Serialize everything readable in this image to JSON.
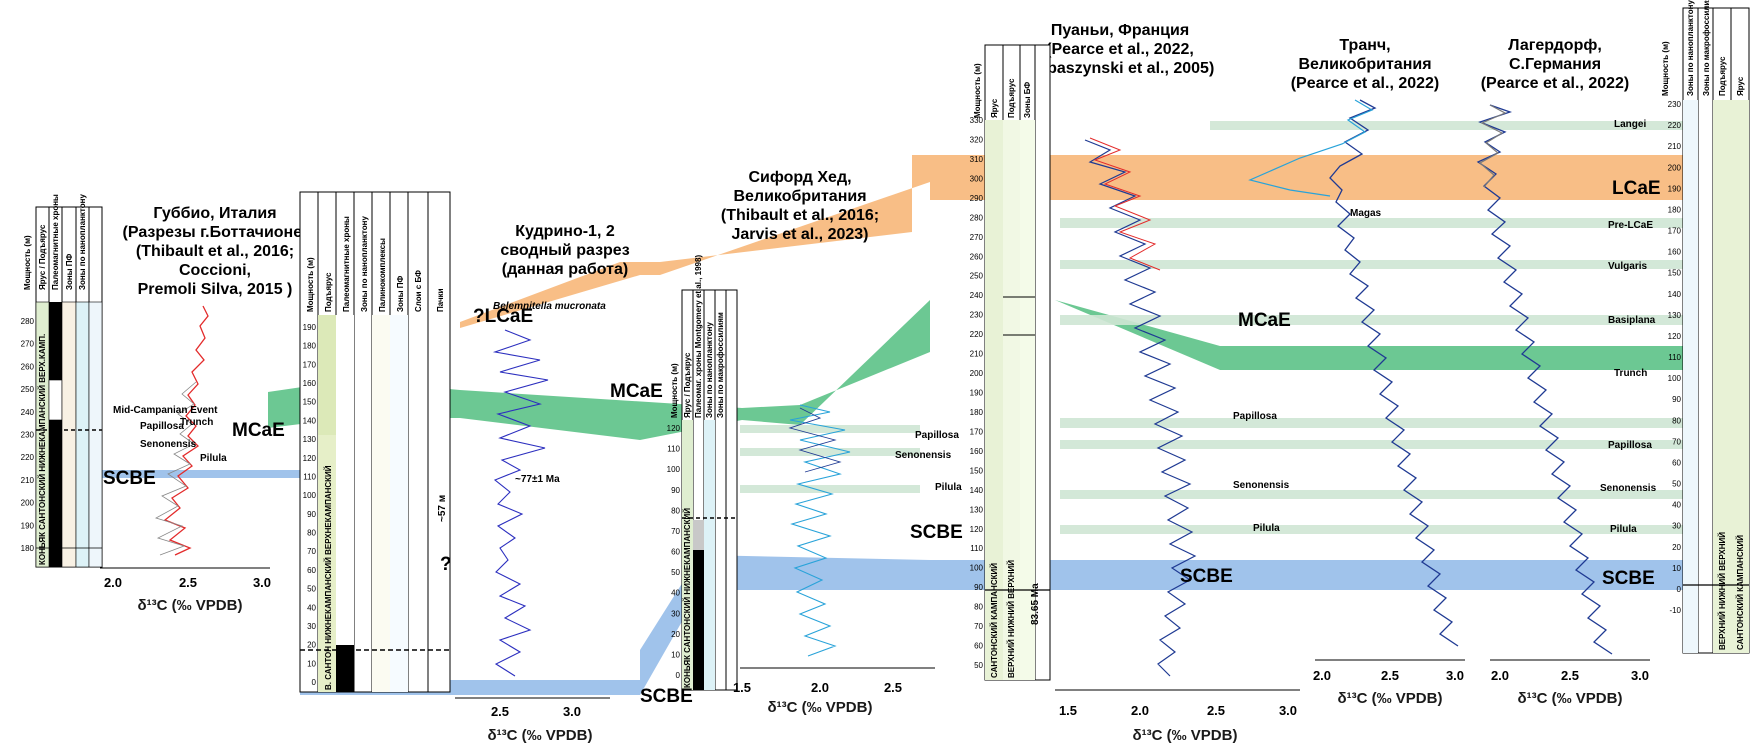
{
  "sections": {
    "gubbio": {
      "title": [
        "Губбио, Италия",
        "(Разрезы г.Боттачионе)",
        "(Thibault et al., 2016;",
        "Coccioni,",
        "Premoli Silva, 2015 )"
      ],
      "x_ticks": [
        "2.0",
        "2.5",
        "3.0"
      ],
      "depth_ticks": [
        "180",
        "190",
        "200",
        "210",
        "220",
        "230",
        "240",
        "250",
        "260",
        "270",
        "280"
      ]
    },
    "kudrino": {
      "title": [
        "Кудрино-1, 2",
        "сводный разрез",
        "(данная работа)"
      ],
      "x_ticks": [
        "2.5",
        "3.0"
      ],
      "depth_ticks": [
        "0",
        "10",
        "20",
        "30",
        "40",
        "50",
        "60",
        "70",
        "80",
        "90",
        "100",
        "110",
        "120",
        "130",
        "140",
        "150",
        "160",
        "170",
        "180",
        "190"
      ]
    },
    "seaford": {
      "title": [
        "Сифорд Хед,",
        "Великобритания",
        "(Thibault et al., 2016;",
        "Jarvis et al., 2023)"
      ],
      "x_ticks": [
        "1.5",
        "2.0",
        "2.5"
      ],
      "depth_ticks": [
        "0",
        "10",
        "20",
        "30",
        "40",
        "50",
        "60",
        "70",
        "80",
        "90",
        "100",
        "110",
        "120"
      ]
    },
    "poigny": {
      "title": [
        "Пуаньи, Франция",
        "(Pearce et al., 2022,",
        "Robaszynski et al., 2005)"
      ],
      "x_ticks": [
        "1.5",
        "2.0",
        "2.5",
        "3.0"
      ],
      "depth_ticks": [
        "50",
        "60",
        "70",
        "80",
        "90",
        "100",
        "110",
        "120",
        "130",
        "140",
        "150",
        "160",
        "170",
        "180",
        "190",
        "200",
        "210",
        "220",
        "230",
        "240",
        "250",
        "260",
        "270",
        "280",
        "290",
        "300",
        "310",
        "320",
        "330"
      ]
    },
    "trunch": {
      "title": [
        "Транч,",
        "Великобритания",
        "(Pearce et al., 2022)"
      ],
      "x_ticks": [
        "2.0",
        "2.5",
        "3.0"
      ]
    },
    "lagerdorf": {
      "title": [
        "Лагердорф,",
        "С.Германия",
        "(Pearce et al., 2022)"
      ],
      "x_ticks": [
        "2.0",
        "2.5",
        "3.0"
      ],
      "depth_ticks": [
        "-10",
        "0",
        "10",
        "20",
        "30",
        "40",
        "50",
        "60",
        "70",
        "80",
        "90",
        "100",
        "110",
        "120",
        "130",
        "140",
        "150",
        "160",
        "170",
        "180",
        "190",
        "200",
        "210",
        "220",
        "230"
      ]
    }
  },
  "axis_label": "δ¹³C (‰ VPDB)",
  "column_headers": {
    "gubbio": [
      "Мощность (м)",
      "Ярус / Подъярус",
      "Палеомагнитные хроны",
      "Зоны ПФ",
      "Зоны по нанопланктону"
    ],
    "kudrino": [
      "Мощность (м)",
      "Подъярус",
      "Палеомагнитные хроны",
      "Зоны по нанопланктону",
      "Палинокомплексы",
      "Зоны ПФ",
      "Слои с БФ",
      "Пачки"
    ],
    "seaford": [
      "Мощность (м)",
      "Ярус / Подъярус",
      "Палеомаг. хроны Montgomery et al., 1998)",
      "Зоны по нанопланктону",
      "Зоны по макрофоссилиям"
    ],
    "poigny": [
      "Мощность (м)",
      "Ярус",
      "Подъярус",
      "Зоны БФ"
    ],
    "right": [
      "Мощность (м)",
      "Зоны по нанопланктону",
      "Зоны по макрофоссилиям",
      "Подъярус",
      "Ярус"
    ]
  },
  "events": {
    "scbe": "SCBE",
    "mcae": "MCaE",
    "lcae": "LCaE",
    "q_lcae": "?LCaE",
    "papillosa": "Papillosa",
    "senonensis": "Senonensis",
    "pilula": "Pilula",
    "trunch_ev": "Trunch",
    "langei": "Langei",
    "pre_lcae": "Pre-LCaE",
    "vulgaris": "Vulgaris",
    "basiplana": "Basiplana",
    "mid_campanian": "Mid-Campanian Event",
    "magas": "Magas"
  },
  "stages": {
    "gub_stage": "КОНЬЯК САНТОНСКИЙ НИЖНЕКАМПАНСКИЙ ВЕРХ.КАМП.",
    "kud_stage": "В. САНТОН НИЖНЕКАМПАНСКИЙ ВЕРХНЕКАМПАНСКИЙ",
    "sea_stage": "КОНЬЯК САНТОНСКИЙ НИЖНЕКАМПАНСКИЙ",
    "poi_stage": "САНТОНСКИЙ КАМПАНСКИЙ",
    "poi_sub": "ВЕРХНИЙ НИЖНИЙ ВЕРХНИЙ",
    "right_stage": "САНТОНСКИЙ КАМПАНСКИЙ",
    "right_sub": "ВЕРХНИЙ НИЖНИЙ ВЕРХНИЙ"
  },
  "bio_labels": {
    "belemnitella": "Belemnitella mucronata",
    "kud_age": "~77±1 Ma",
    "poi_age": "83.65 Ma",
    "q": "?",
    "m57": "~57 м"
  },
  "colors": {
    "mcae_band": "#52be80",
    "lcae_band": "#f5a352",
    "scbe_band": "#8fb8e8",
    "pale_band": "#cfe6d4",
    "curve_blue": "#1f3a93",
    "curve_light": "#29a3d9",
    "curve_red": "#e32b2b",
    "curve_grey": "#7a7a7a",
    "zone_purple": "#8e44ad",
    "zone_cyan": "#1a9fd6",
    "zone_green": "#1e8449"
  }
}
